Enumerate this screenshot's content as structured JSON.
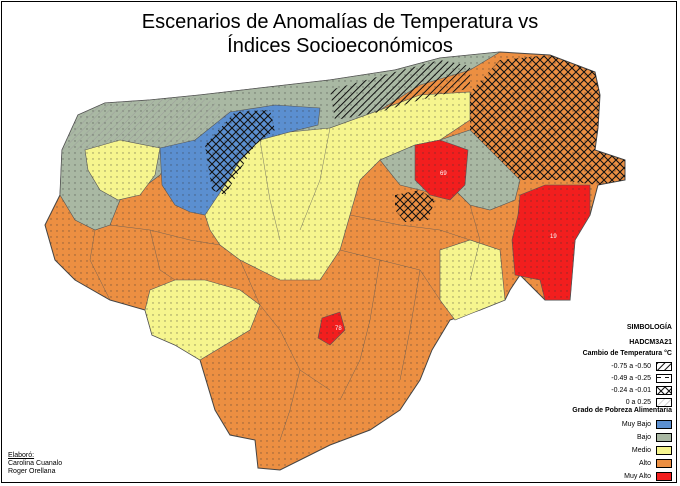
{
  "title_line1": "Escenarios de Anomalías de Temperatura vs",
  "title_line2": "Índices Socioeconómicos",
  "legend": {
    "heading": "SIMBOLOGÍA",
    "scenario": "HADCM3A21",
    "temp_title": "Cambio de Temperatura °C",
    "temp_items": [
      {
        "label": "-0.75 a -0.50",
        "pattern": "hatch-dense"
      },
      {
        "label": "-0.49 a -0.25",
        "pattern": "dashed"
      },
      {
        "label": "-0.24 a -0.01",
        "pattern": "crosshatch"
      },
      {
        "label": "0 a 0.25",
        "pattern": "hatch-light"
      }
    ],
    "poverty_title": "Grado de Pobreza Alimentaria",
    "poverty_items": [
      {
        "label": "Muy Bajo",
        "color": "#5b8fd0"
      },
      {
        "label": "Bajo",
        "color": "#a9b8a3"
      },
      {
        "label": "Medio",
        "color": "#f6f58e"
      },
      {
        "label": "Alto",
        "color": "#ec8f42"
      },
      {
        "label": "Muy Alto",
        "color": "#f21e1e"
      }
    ]
  },
  "credits": {
    "label": "Elaboró:",
    "names": [
      "Carolina Cuanalo",
      "Roger Orellana"
    ]
  },
  "map_labels": [
    "69",
    "19",
    "78"
  ]
}
